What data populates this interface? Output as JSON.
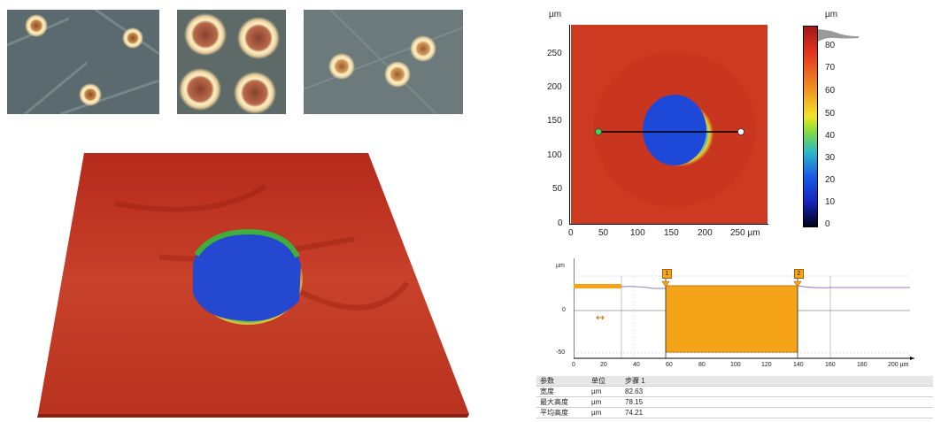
{
  "heatmap": {
    "unit_label": "µm",
    "y_ticks": [
      "250",
      "200",
      "150",
      "100",
      "50",
      "0"
    ],
    "x_ticks": [
      "0",
      "50",
      "100",
      "150",
      "200",
      "250 µm"
    ],
    "colorbar_unit": "µm",
    "colorbar_ticks": [
      "80",
      "70",
      "60",
      "50",
      "40",
      "30",
      "20",
      "10",
      "0"
    ]
  },
  "profile": {
    "unit_label": "µm",
    "y_ticks": [
      "0",
      "-50"
    ],
    "x_ticks": [
      "0",
      "20",
      "40",
      "60",
      "80",
      "100",
      "120",
      "140",
      "160",
      "180",
      "200 µm"
    ],
    "cursor_1": "1",
    "cursor_2": "2"
  },
  "param_table": {
    "headers": [
      "参数",
      "单位",
      "步骤 1"
    ],
    "rows": [
      {
        "name": "宽度",
        "unit": "µm",
        "value": "82.63"
      },
      {
        "name": "最大高度",
        "unit": "µm",
        "value": "78.15"
      },
      {
        "name": "平均高度",
        "unit": "µm",
        "value": "74.21"
      }
    ]
  },
  "colors": {
    "surface_red": "#c4341f",
    "crater_blue": "#1f4fd6",
    "profile_fill": "#f5a419",
    "accent_green": "#2faa3a"
  }
}
